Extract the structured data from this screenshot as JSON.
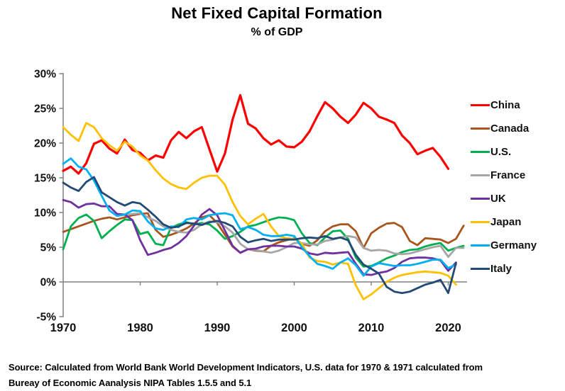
{
  "title": "Net Fixed Capital Formation",
  "subtitle": "% of GDP",
  "source": {
    "line1": "Source:  Calculated from World Bank World Development Indicators, U.S. data for 1970 & 1971 calculated from",
    "line2": "Bureay of Economic Aanalysis NIPA Tables 1.5.5 and 5.1"
  },
  "chart_data": {
    "type": "line",
    "title": "Net Fixed Capital Formation",
    "subtitle": "% of GDP",
    "xlabel": "",
    "ylabel": "",
    "ylim": [
      -5,
      30
    ],
    "xlim": [
      1970,
      2022
    ],
    "grid": "off",
    "legend_position": "right",
    "axis_color": "#808080",
    "zero_line": true,
    "y_ticks": [
      {
        "label": "30%",
        "value": 30
      },
      {
        "label": "25%",
        "value": 25
      },
      {
        "label": "20%",
        "value": 20
      },
      {
        "label": "15%",
        "value": 15
      },
      {
        "label": "10%",
        "value": 10
      },
      {
        "label": "5%",
        "value": 5
      },
      {
        "label": "0%",
        "value": 0
      },
      {
        "label": "-5%",
        "value": -5
      }
    ],
    "x_ticks": [
      {
        "label": "1970",
        "year": 1970
      },
      {
        "label": "1980",
        "year": 1980
      },
      {
        "label": "1990",
        "year": 1990
      },
      {
        "label": "2000",
        "year": 2000
      },
      {
        "label": "2010",
        "year": 2010
      },
      {
        "label": "2020",
        "year": 2020
      }
    ],
    "series": [
      {
        "name": "China",
        "color": "#FF0000",
        "line_width": 3.2,
        "start_year": 1970,
        "values": [
          16.0,
          16.6,
          15.6,
          17.1,
          19.9,
          20.4,
          19.2,
          18.5,
          20.5,
          19.0,
          18.6,
          17.5,
          18.2,
          17.9,
          20.4,
          21.6,
          20.7,
          21.7,
          22.3,
          19.1,
          15.9,
          18.5,
          23.4,
          26.9,
          22.8,
          22.1,
          20.7,
          19.8,
          20.4,
          19.5,
          19.4,
          20.2,
          21.7,
          23.9,
          25.9,
          25.0,
          23.8,
          22.9,
          24.1,
          25.8,
          25.0,
          23.8,
          23.4,
          22.9,
          21.1,
          20.0,
          18.4,
          18.9,
          19.3,
          18.0,
          16.3
        ]
      },
      {
        "name": "Canada",
        "color": "#A9551D",
        "line_width": 2.8,
        "start_year": 1970,
        "values": [
          7.2,
          7.6,
          8.0,
          8.4,
          8.8,
          9.1,
          9.3,
          9.0,
          9.3,
          9.6,
          9.8,
          9.9,
          7.5,
          6.5,
          6.8,
          7.2,
          7.7,
          8.4,
          9.3,
          9.6,
          8.5,
          6.8,
          5.1,
          4.2,
          4.7,
          4.5,
          4.4,
          5.2,
          5.7,
          6.0,
          6.3,
          5.5,
          5.2,
          6.0,
          7.3,
          8.0,
          8.3,
          8.3,
          7.3,
          4.9,
          7.0,
          7.8,
          8.4,
          8.5,
          7.9,
          5.9,
          5.3,
          6.3,
          6.2,
          6.1,
          5.6,
          6.2,
          8.1
        ]
      },
      {
        "name": "U.S.",
        "color": "#00B050",
        "line_width": 2.8,
        "start_year": 1970,
        "values": [
          4.7,
          8.0,
          9.2,
          9.7,
          8.8,
          6.3,
          7.3,
          8.2,
          9.0,
          8.9,
          6.9,
          7.2,
          5.5,
          5.3,
          7.8,
          8.3,
          8.6,
          8.3,
          8.5,
          8.3,
          7.4,
          6.2,
          6.6,
          7.2,
          8.0,
          8.2,
          8.6,
          9.0,
          9.3,
          9.2,
          8.9,
          7.0,
          5.6,
          5.3,
          6.4,
          7.3,
          7.4,
          6.2,
          3.5,
          2.2,
          2.3,
          2.8,
          3.4,
          3.8,
          4.3,
          4.6,
          4.7,
          5.1,
          5.4,
          5.6,
          4.5,
          4.9,
          5.2
        ]
      },
      {
        "name": "France",
        "color": "#A6A6A6",
        "line_width": 2.8,
        "start_year": 1978,
        "values": [
          9.6,
          9.8,
          9.9,
          9.3,
          8.8,
          8.0,
          7.5,
          7.2,
          7.1,
          7.5,
          8.3,
          8.7,
          8.6,
          8.0,
          7.1,
          5.5,
          4.7,
          4.6,
          4.4,
          4.2,
          4.5,
          5.0,
          5.6,
          5.6,
          5.4,
          5.4,
          5.9,
          6.1,
          6.4,
          6.6,
          6.4,
          4.9,
          4.5,
          4.6,
          4.5,
          4.1,
          4.0,
          4.1,
          4.4,
          4.7,
          5.0,
          5.2,
          3.6,
          4.9,
          4.9
        ]
      },
      {
        "name": "UK",
        "color": "#7030A0",
        "line_width": 2.8,
        "start_year": 1970,
        "values": [
          11.8,
          11.5,
          10.7,
          11.2,
          11.3,
          10.9,
          10.9,
          9.8,
          9.7,
          8.9,
          6.0,
          3.9,
          4.2,
          4.6,
          4.9,
          5.6,
          6.6,
          8.1,
          9.7,
          10.5,
          9.6,
          7.4,
          5.2,
          4.2,
          4.7,
          4.8,
          5.1,
          5.2,
          5.2,
          5.1,
          5.1,
          4.8,
          4.1,
          3.9,
          4.2,
          4.1,
          4.2,
          4.3,
          2.6,
          1.1,
          1.0,
          1.3,
          1.5,
          2.0,
          2.9,
          3.4,
          3.5,
          3.5,
          3.4,
          3.1,
          1.6,
          2.8
        ]
      },
      {
        "name": "Japan",
        "color": "#FFC000",
        "line_width": 2.8,
        "start_year": 1970,
        "values": [
          22.3,
          21.2,
          20.3,
          22.9,
          22.3,
          20.7,
          19.7,
          18.9,
          20.2,
          19.5,
          18.2,
          17.5,
          16.1,
          14.9,
          14.1,
          13.6,
          13.4,
          14.3,
          15.0,
          15.3,
          15.3,
          14.0,
          11.5,
          9.5,
          8.3,
          9.1,
          9.8,
          8.0,
          6.6,
          6.3,
          6.2,
          5.5,
          3.5,
          3.0,
          2.9,
          2.5,
          2.8,
          2.6,
          -0.5,
          -2.5,
          -1.8,
          -0.9,
          0.0,
          0.6,
          1.0,
          1.2,
          1.4,
          1.5,
          1.4,
          1.3,
          0.9,
          -0.4
        ]
      },
      {
        "name": "Germany",
        "color": "#00B0F0",
        "line_width": 2.8,
        "start_year": 1970,
        "values": [
          17.0,
          17.8,
          16.6,
          16.2,
          14.6,
          12.4,
          10.3,
          9.5,
          9.7,
          10.3,
          10.2,
          8.7,
          7.7,
          7.5,
          8.0,
          7.9,
          9.0,
          9.2,
          9.0,
          9.6,
          9.8,
          9.9,
          9.6,
          7.6,
          7.9,
          7.5,
          6.8,
          6.6,
          6.6,
          6.8,
          6.6,
          5.0,
          3.7,
          2.6,
          2.3,
          1.9,
          2.8,
          3.4,
          2.4,
          0.9,
          2.2,
          2.7,
          2.5,
          2.3,
          2.4,
          2.4,
          2.6,
          2.9,
          3.2,
          3.2,
          2.0,
          2.5
        ]
      },
      {
        "name": "Italy",
        "color": "#234A75",
        "line_width": 2.8,
        "start_year": 1970,
        "values": [
          14.3,
          13.6,
          13.1,
          14.4,
          15.1,
          12.9,
          12.2,
          11.5,
          11.0,
          11.5,
          11.3,
          10.4,
          9.4,
          8.3,
          7.8,
          8.0,
          8.5,
          8.4,
          8.2,
          8.6,
          8.8,
          8.5,
          8.0,
          6.5,
          5.7,
          6.0,
          6.2,
          5.9,
          6.1,
          6.1,
          6.1,
          6.3,
          6.4,
          6.3,
          6.6,
          6.2,
          6.4,
          6.0,
          3.9,
          2.5,
          1.9,
          1.2,
          -0.7,
          -1.4,
          -1.6,
          -1.4,
          -0.9,
          -0.4,
          -0.1,
          0.3,
          -1.6,
          2.7
        ]
      }
    ]
  }
}
